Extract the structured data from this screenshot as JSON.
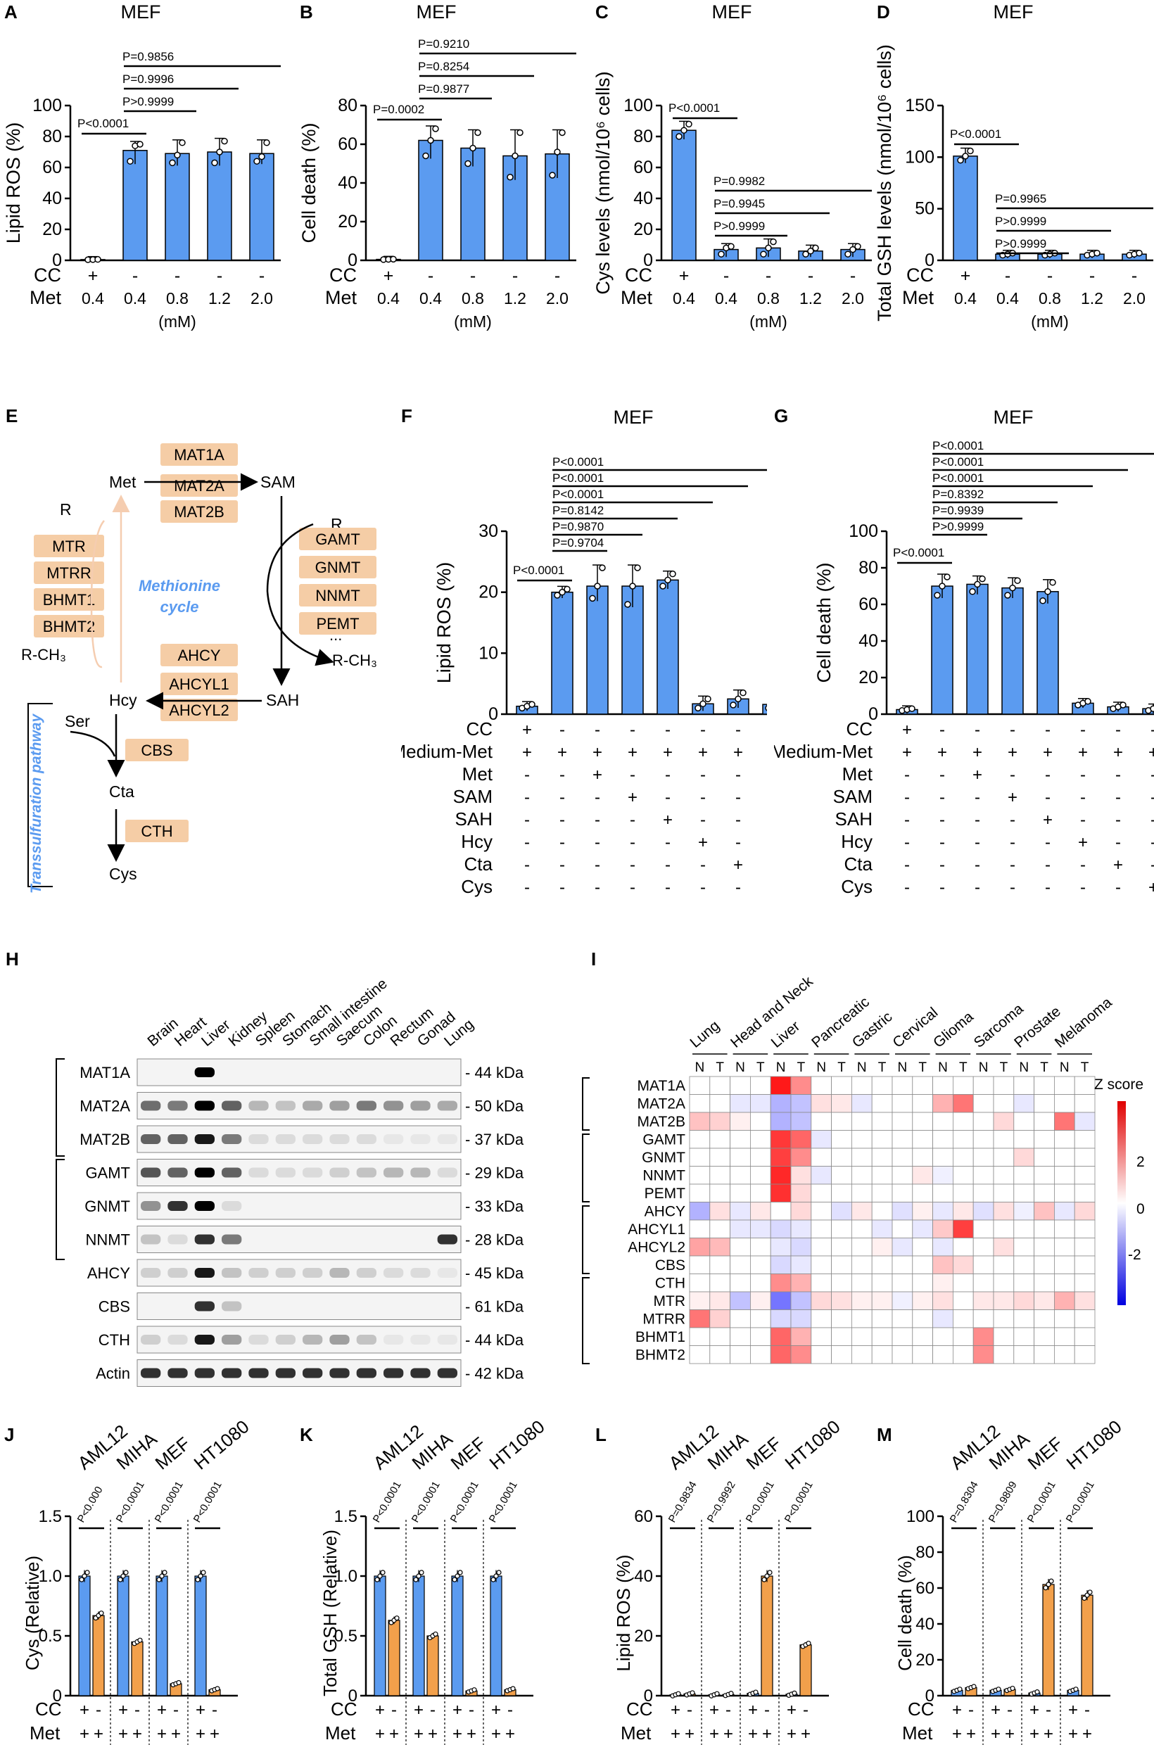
{
  "chart_data": [
    {
      "panel": "A",
      "type": "bar",
      "title": "MEF",
      "ylabel": "Lipid ROS (%)",
      "ylim": [
        0,
        100
      ],
      "yticks": [
        0,
        20,
        40,
        60,
        80,
        100
      ],
      "row_labels": [
        "CC",
        "Met"
      ],
      "cc": [
        "+",
        "-",
        "-",
        "-",
        "-"
      ],
      "met": [
        "0.4",
        "0.4",
        "0.8",
        "1.2",
        "2.0"
      ],
      "unit": "(mM)",
      "values": [
        0.5,
        71,
        69,
        70,
        69
      ],
      "points": [
        [
          0.4,
          0.5,
          0.6
        ],
        [
          64,
          74,
          75
        ],
        [
          63,
          68,
          76
        ],
        [
          63,
          70,
          77
        ],
        [
          64,
          67,
          76
        ]
      ],
      "pvalues": [
        "P<0.0001",
        "P>0.9999",
        "P=0.9996",
        "P=0.9856"
      ],
      "colors": [
        "#5b9bf0",
        "#5b9bf0",
        "#5b9bf0",
        "#5b9bf0",
        "#5b9bf0"
      ]
    },
    {
      "panel": "B",
      "type": "bar",
      "title": "MEF",
      "ylabel": "Cell death (%)",
      "ylim": [
        0,
        80
      ],
      "yticks": [
        0,
        20,
        40,
        60,
        80
      ],
      "row_labels": [
        "CC",
        "Met"
      ],
      "cc": [
        "+",
        "-",
        "-",
        "-",
        "-"
      ],
      "met": [
        "0.4",
        "0.4",
        "0.8",
        "1.2",
        "2.0"
      ],
      "unit": "(mM)",
      "values": [
        0.5,
        62,
        58,
        54,
        55
      ],
      "points": [
        [
          0.4,
          0.5,
          0.6
        ],
        [
          54,
          62,
          68
        ],
        [
          50,
          58,
          66
        ],
        [
          43,
          54,
          66
        ],
        [
          44,
          56,
          66
        ]
      ],
      "pvalues": [
        "P=0.0002",
        "P=0.9877",
        "P=0.8254",
        "P=0.9210"
      ],
      "colors": [
        "#5b9bf0",
        "#5b9bf0",
        "#5b9bf0",
        "#5b9bf0",
        "#5b9bf0"
      ]
    },
    {
      "panel": "C",
      "type": "bar",
      "title": "MEF",
      "ylabel": "Cys levels (nmol/10⁶ cells)",
      "ylim": [
        0,
        100
      ],
      "yticks": [
        0,
        20,
        40,
        60,
        80,
        100
      ],
      "row_labels": [
        "CC",
        "Met"
      ],
      "cc": [
        "+",
        "-",
        "-",
        "-",
        "-"
      ],
      "met": [
        "0.4",
        "0.4",
        "0.8",
        "1.2",
        "2.0"
      ],
      "unit": "(mM)",
      "values": [
        84,
        7,
        8,
        6,
        7
      ],
      "points": [
        [
          80,
          84,
          88
        ],
        [
          4,
          8,
          9
        ],
        [
          4,
          8,
          12
        ],
        [
          4,
          6,
          8
        ],
        [
          4,
          7,
          9
        ]
      ],
      "pvalues": [
        "P<0.0001",
        "P>0.9999",
        "P=0.9945",
        "P=0.9982"
      ],
      "colors": [
        "#5b9bf0",
        "#5b9bf0",
        "#5b9bf0",
        "#5b9bf0",
        "#5b9bf0"
      ]
    },
    {
      "panel": "D",
      "type": "bar",
      "title": "MEF",
      "ylabel": "Total GSH levels (nmol/10⁶ cells)",
      "ylim": [
        0,
        150
      ],
      "yticks": [
        0,
        50,
        100,
        150
      ],
      "row_labels": [
        "CC",
        "Met"
      ],
      "cc": [
        "+",
        "-",
        "-",
        "-",
        "-"
      ],
      "met": [
        "0.4",
        "0.4",
        "0.8",
        "1.2",
        "2.0"
      ],
      "unit": "(mM)",
      "values": [
        101,
        6,
        6,
        6,
        6
      ],
      "points": [
        [
          97,
          101,
          106
        ],
        [
          5,
          6,
          7
        ],
        [
          5,
          6,
          7
        ],
        [
          5,
          6,
          7
        ],
        [
          5,
          6,
          7
        ]
      ],
      "pvalues": [
        "P<0.0001",
        "P>0.9999",
        "P>0.9999",
        "P=0.9965"
      ],
      "colors": [
        "#5b9bf0",
        "#5b9bf0",
        "#5b9bf0",
        "#5b9bf0",
        "#5b9bf0"
      ]
    },
    {
      "panel": "F",
      "type": "bar",
      "title": "MEF",
      "ylabel": "Lipid ROS (%)",
      "ylim": [
        0,
        30
      ],
      "yticks": [
        0,
        10,
        20,
        30
      ],
      "row_labels": [
        "CC",
        "Medium-Met",
        "Met",
        "SAM",
        "SAH",
        "Hcy",
        "Cta",
        "Cys"
      ],
      "rows": [
        [
          "+",
          "-",
          "-",
          "-",
          "-",
          "-",
          "-",
          "-"
        ],
        [
          "+",
          "+",
          "+",
          "+",
          "+",
          "+",
          "+",
          "+"
        ],
        [
          "-",
          "-",
          "+",
          "-",
          "-",
          "-",
          "-",
          "-"
        ],
        [
          "-",
          "-",
          "-",
          "+",
          "-",
          "-",
          "-",
          "-"
        ],
        [
          "-",
          "-",
          "-",
          "-",
          "+",
          "-",
          "-",
          "-"
        ],
        [
          "-",
          "-",
          "-",
          "-",
          "-",
          "+",
          "-",
          "-"
        ],
        [
          "-",
          "-",
          "-",
          "-",
          "-",
          "-",
          "+",
          "-"
        ],
        [
          "-",
          "-",
          "-",
          "-",
          "-",
          "-",
          "-",
          "+"
        ]
      ],
      "values": [
        1.3,
        20,
        21,
        21,
        22,
        1.7,
        2.5,
        1.6
      ],
      "points": [
        [
          1,
          1.3,
          1.6
        ],
        [
          19.5,
          20,
          20.5
        ],
        [
          19,
          21,
          24
        ],
        [
          18,
          21,
          24
        ],
        [
          21,
          22,
          23
        ],
        [
          1,
          1.7,
          2.5
        ],
        [
          1.5,
          2.5,
          3.5
        ],
        [
          1,
          1.6,
          2.2
        ]
      ],
      "pvalues": [
        "P<0.0001",
        "P=0.9704",
        "P=0.9870",
        "P=0.8142",
        "P<0.0001",
        "P<0.0001",
        "P<0.0001"
      ]
    },
    {
      "panel": "G",
      "type": "bar",
      "title": "MEF",
      "ylabel": "Cell death (%)",
      "ylim": [
        0,
        100
      ],
      "yticks": [
        0,
        20,
        40,
        60,
        80,
        100
      ],
      "row_labels": [
        "CC",
        "Medium-Met",
        "Met",
        "SAM",
        "SAH",
        "Hcy",
        "Cta",
        "Cys"
      ],
      "rows": [
        [
          "+",
          "-",
          "-",
          "-",
          "-",
          "-",
          "-",
          "-"
        ],
        [
          "+",
          "+",
          "+",
          "+",
          "+",
          "+",
          "+",
          "+"
        ],
        [
          "-",
          "-",
          "+",
          "-",
          "-",
          "-",
          "-",
          "-"
        ],
        [
          "-",
          "-",
          "-",
          "+",
          "-",
          "-",
          "-",
          "-"
        ],
        [
          "-",
          "-",
          "-",
          "-",
          "+",
          "-",
          "-",
          "-"
        ],
        [
          "-",
          "-",
          "-",
          "-",
          "-",
          "+",
          "-",
          "-"
        ],
        [
          "-",
          "-",
          "-",
          "-",
          "-",
          "-",
          "+",
          "-"
        ],
        [
          "-",
          "-",
          "-",
          "-",
          "-",
          "-",
          "-",
          "+"
        ]
      ],
      "values": [
        2.5,
        70,
        71,
        69,
        67,
        6,
        4,
        3
      ],
      "points": [
        [
          2,
          2.5,
          3
        ],
        [
          65,
          70,
          75
        ],
        [
          67,
          71,
          74
        ],
        [
          65,
          69,
          73
        ],
        [
          62,
          67,
          72
        ],
        [
          5,
          6,
          7
        ],
        [
          3,
          4,
          5
        ],
        [
          2,
          3,
          4
        ]
      ],
      "pvalues": [
        "P<0.0001",
        "P>0.9999",
        "P=0.9939",
        "P=0.8392",
        "P<0.0001",
        "P<0.0001",
        "P<0.0001"
      ]
    },
    {
      "panel": "J",
      "type": "bar",
      "ylabel": "Cys (Relative)",
      "ylim": [
        0,
        1.5
      ],
      "yticks": [
        "0",
        "0.5",
        "1.0",
        "1.5"
      ],
      "groups": [
        "AML12",
        "MIHA",
        "MEF",
        "HT1080"
      ],
      "cc": [
        "+",
        "-"
      ],
      "met": [
        "+",
        "+"
      ],
      "values": [
        [
          1.0,
          0.67
        ],
        [
          1.0,
          0.45
        ],
        [
          1.0,
          0.1
        ],
        [
          1.0,
          0.05
        ]
      ],
      "pvalues": [
        "P<0.000",
        "P<0.0001",
        "P<0.0001",
        "P<0.0001"
      ]
    },
    {
      "panel": "K",
      "type": "bar",
      "ylabel": "Total GSH (Relative)",
      "ylim": [
        0,
        1.5
      ],
      "yticks": [
        "0",
        "0.5",
        "1.0",
        "1.5"
      ],
      "groups": [
        "AML12",
        "MIHA",
        "MEF",
        "HT1080"
      ],
      "cc": [
        "+",
        "-"
      ],
      "met": [
        "+",
        "+"
      ],
      "values": [
        [
          1.0,
          0.63
        ],
        [
          1.0,
          0.5
        ],
        [
          1.0,
          0.04
        ],
        [
          1.0,
          0.05
        ]
      ],
      "pvalues": [
        "P<0.0001",
        "P<0.0001",
        "P<0.0001",
        "P<0.0001"
      ]
    },
    {
      "panel": "L",
      "type": "bar",
      "ylabel": "Lipid ROS (%)",
      "ylim": [
        0,
        60
      ],
      "yticks": [
        "0",
        "20",
        "40",
        "60"
      ],
      "groups": [
        "AML12",
        "MIHA",
        "MEF",
        "HT1080"
      ],
      "cc": [
        "+",
        "-"
      ],
      "met": [
        "+",
        "+"
      ],
      "values": [
        [
          0.3,
          0.6
        ],
        [
          0.3,
          0.4
        ],
        [
          0.8,
          40
        ],
        [
          0.5,
          17
        ]
      ],
      "pvalues": [
        "P=0.9834",
        "P=0.9992",
        "P<0.0001",
        "P<0.0001"
      ]
    },
    {
      "panel": "M",
      "type": "bar",
      "ylabel": "Cell death (%)",
      "ylim": [
        0,
        100
      ],
      "yticks": [
        "0",
        "20",
        "40",
        "60",
        "80",
        "100"
      ],
      "groups": [
        "AML12",
        "MIHA",
        "MEF",
        "HT1080"
      ],
      "cc": [
        "+",
        "-"
      ],
      "met": [
        "+",
        "+"
      ],
      "values": [
        [
          3,
          4.5
        ],
        [
          3,
          3.5
        ],
        [
          1.5,
          62
        ],
        [
          3,
          56
        ]
      ],
      "pvalues": [
        "P=0.8304",
        "P=0.9809",
        "P<0.0001",
        "P<0.0001"
      ]
    }
  ],
  "panel_labels": {
    "A": "A",
    "B": "B",
    "C": "C",
    "D": "D",
    "E": "E",
    "F": "F",
    "G": "G",
    "H": "H",
    "I": "I",
    "J": "J",
    "K": "K",
    "L": "L",
    "M": "M"
  },
  "pathway": {
    "met": "Met",
    "sam": "SAM",
    "sah": "SAH",
    "hcy": "Hcy",
    "cta": "Cta",
    "cys": "Cys",
    "ser": "Ser",
    "r_left": "R",
    "r_right": "R",
    "rch3_left": "R-CH₃",
    "rch3_right": "R-CH₃",
    "dots": "...",
    "mat": [
      "MAT1A",
      "MAT2A",
      "MAT2B"
    ],
    "mt": [
      "GAMT",
      "GNMT",
      "NNMT",
      "PEMT"
    ],
    "ahcy": [
      "AHCY",
      "AHCYL1",
      "AHCYL2"
    ],
    "remet": [
      "MTR",
      "MTRR",
      "BHMT1",
      "BHMT2"
    ],
    "cbs": "CBS",
    "cth": "CTH",
    "cycle": [
      "Methionine",
      "cycle"
    ],
    "trans": "Transsulfuration pathway",
    "box_color": "#f5cda6"
  },
  "blot": {
    "tissues": [
      "Brain",
      "Heart",
      "Liver",
      "Kidney",
      "Spleen",
      "Stomach",
      "Small intestine",
      "Saecum",
      "Colon",
      "Rectum",
      "Gonad",
      "Lung"
    ],
    "rows": [
      [
        "MAT1A",
        "- 44 kDa"
      ],
      [
        "MAT2A",
        "- 50 kDa"
      ],
      [
        "MAT2B",
        "- 37 kDa"
      ],
      [
        "GAMT",
        "- 29 kDa"
      ],
      [
        "GNMT",
        "- 33 kDa"
      ],
      [
        "NNMT",
        "- 28 kDa"
      ],
      [
        "AHCY",
        "- 45 kDa"
      ],
      [
        "CBS",
        "- 61 kDa"
      ],
      [
        "CTH",
        "- 44 kDa"
      ],
      [
        "Actin",
        "- 42 kDa"
      ]
    ]
  },
  "heatmap": {
    "cancers": [
      "Lung",
      "Head and Neck",
      "Liver",
      "Pancreatic",
      "Gastric",
      "Cervical",
      "Glioma",
      "Sarcoma",
      "Prostate",
      "Melanoma"
    ],
    "nt": [
      "N",
      "T"
    ],
    "genes": [
      "MAT1A",
      "MAT2A",
      "MAT2B",
      "GAMT",
      "GNMT",
      "NNMT",
      "PEMT",
      "AHCY",
      "AHCYL1",
      "AHCYL2",
      "CBS",
      "CTH",
      "MTR",
      "MTRR",
      "BHMT1",
      "BHMT2"
    ],
    "legend_title": "Z score",
    "legend_ticks": [
      "2",
      "0",
      "-2"
    ],
    "z": [
      [
        0,
        0,
        0,
        0,
        3,
        1.5,
        0,
        0,
        0,
        0,
        0,
        0,
        0,
        0,
        0,
        0,
        0,
        0,
        0,
        0
      ],
      [
        0,
        0,
        -0.3,
        -0.3,
        -1,
        -0.8,
        0.4,
        0.3,
        -0.3,
        0,
        0,
        0,
        1,
        1.8,
        0,
        0,
        -0.3,
        0,
        0,
        0
      ],
      [
        0.8,
        0.6,
        0.2,
        0,
        -1,
        -0.8,
        0,
        0,
        0,
        0,
        0,
        0,
        0,
        0,
        0,
        0.5,
        0,
        0,
        1.8,
        -0.3
      ],
      [
        0,
        0,
        0,
        0,
        2.6,
        2,
        -0.3,
        0,
        0,
        0,
        0,
        0,
        0,
        0,
        0,
        0,
        0,
        0,
        0,
        0
      ],
      [
        0,
        0,
        0,
        0,
        2.5,
        1.5,
        0,
        0,
        0,
        0,
        0,
        0,
        0,
        0,
        0,
        0,
        0.5,
        0,
        0,
        0
      ],
      [
        0,
        0,
        0,
        0,
        2.8,
        0.4,
        -0.3,
        0,
        0,
        0,
        0,
        0.3,
        -0.2,
        0,
        0,
        0,
        0,
        0,
        0,
        0
      ],
      [
        0,
        0,
        0,
        0,
        2.7,
        0.5,
        0,
        0,
        0,
        0,
        0,
        0,
        0,
        0,
        0,
        0,
        0,
        0,
        0,
        0
      ],
      [
        -1,
        0.4,
        -0.3,
        0.3,
        0,
        0.5,
        0,
        -0.4,
        0.3,
        0,
        -0.4,
        0.2,
        -0.3,
        0.3,
        -0.4,
        0.4,
        -0.2,
        0.8,
        -0.3,
        0.5
      ],
      [
        0,
        0,
        -0.3,
        -0.3,
        -0.5,
        -0.3,
        0,
        0,
        0,
        -0.3,
        0,
        -0.3,
        0.7,
        2.5,
        0,
        0,
        0,
        0,
        0,
        0
      ],
      [
        1.2,
        0.9,
        0,
        0,
        -0.3,
        -0.5,
        0,
        0,
        0,
        0.2,
        -0.3,
        0,
        -0.3,
        0,
        0,
        0.4,
        0,
        0,
        0,
        0
      ],
      [
        0,
        0,
        0,
        0,
        -0.5,
        -0.3,
        0,
        0,
        0,
        0,
        0,
        0,
        0.8,
        0.5,
        0,
        0,
        0,
        0,
        0,
        0
      ],
      [
        0,
        0,
        0,
        0,
        1.5,
        1,
        0,
        0,
        0,
        0,
        0,
        0,
        0.2,
        0,
        0,
        0,
        0,
        0,
        0,
        0
      ],
      [
        0.2,
        0.3,
        -0.8,
        0.2,
        -1.8,
        -0.8,
        0.5,
        0.4,
        0.2,
        0.2,
        -0.2,
        0.2,
        0.4,
        0,
        0.3,
        0.3,
        0.5,
        0.3,
        1,
        0.4
      ],
      [
        1.8,
        0.6,
        0,
        0,
        -0.5,
        -0.5,
        0,
        0,
        0,
        0,
        0,
        0,
        -0.3,
        0,
        0,
        0,
        0,
        0,
        0,
        0
      ],
      [
        0,
        0,
        0,
        0,
        2,
        1,
        0,
        0,
        0,
        0,
        0,
        0,
        0,
        0,
        1.5,
        0,
        0,
        0,
        0,
        0
      ],
      [
        0,
        0,
        0,
        0,
        2,
        1.5,
        0,
        0,
        0,
        0,
        0,
        0,
        0,
        0,
        1.5,
        0,
        0,
        0,
        0,
        0
      ]
    ]
  },
  "colors": {
    "blue": "#5b9bf0",
    "orange": "#f2a04b"
  }
}
